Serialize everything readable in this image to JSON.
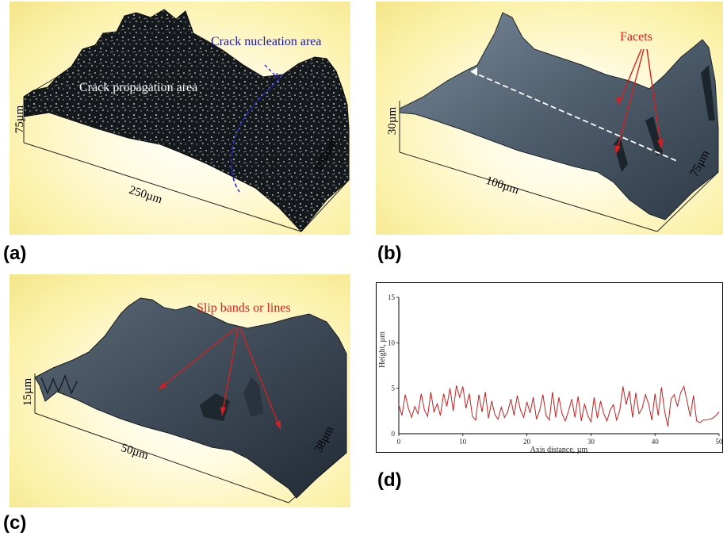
{
  "figure": {
    "panels": [
      {
        "id": "a",
        "label": "(a)",
        "annotations": {
          "propagation": "Crack propagation area",
          "nucleation": "Crack nucleation area"
        },
        "dims": {
          "height": "75µm",
          "length": "250µm",
          "depth": "190µm"
        }
      },
      {
        "id": "b",
        "label": "(b)",
        "annotations": {
          "facets": "Facets"
        },
        "dims": {
          "height": "30µm",
          "length": "100µm",
          "depth": "75µm"
        }
      },
      {
        "id": "c",
        "label": "(c)",
        "annotations": {
          "slip": "Slip bands or lines"
        },
        "dims": {
          "height": "15µm",
          "length": "50µm",
          "depth": "38µm"
        }
      },
      {
        "id": "d",
        "label": "(d)"
      }
    ],
    "colors": {
      "background": "#f7ea9a",
      "annotation_red": "#d42020",
      "annotation_blue": "#1a1aa8",
      "profile_line": "#c62020"
    }
  },
  "chart_data": {
    "type": "line",
    "title": "",
    "xlabel": "Axis distance, µm",
    "ylabel": "Height, µm",
    "xlim": [
      0,
      50
    ],
    "ylim": [
      0,
      15
    ],
    "xticks": [
      0,
      10,
      20,
      30,
      40,
      50
    ],
    "yticks": [
      5,
      10,
      15
    ],
    "grid": false,
    "series": [
      {
        "x": [
          0,
          0.5,
          1,
          1.5,
          2,
          2.5,
          3,
          3.5,
          4,
          4.5,
          5,
          5.5,
          6,
          6.5,
          7,
          7.5,
          8,
          8.5,
          9,
          9.5,
          10,
          10.5,
          11,
          11.5,
          12,
          12.5,
          13,
          13.5,
          14,
          14.5,
          15,
          15.5,
          16,
          16.5,
          17,
          17.5,
          18,
          18.5,
          19,
          19.5,
          20,
          20.5,
          21,
          21.5,
          22,
          22.5,
          23,
          23.5,
          24,
          24.5,
          25,
          25.5,
          26,
          26.5,
          27,
          27.5,
          28,
          28.5,
          29,
          29.5,
          30,
          30.5,
          31,
          31.5,
          32,
          32.5,
          33,
          33.5,
          34,
          34.5,
          35,
          35.5,
          36,
          36.5,
          37,
          37.5,
          38,
          38.5,
          39,
          39.5,
          40,
          40.5,
          41,
          41.5,
          42,
          42.5,
          43,
          43.5,
          44,
          44.5,
          45,
          45.5,
          46,
          46.5,
          47,
          47.5,
          48,
          48.5,
          49,
          49.5,
          50
        ],
        "y": [
          3.2,
          2.0,
          4.3,
          2.8,
          1.8,
          3.0,
          2.2,
          4.4,
          2.6,
          1.9,
          4.6,
          2.4,
          3.3,
          2.0,
          4.4,
          3.0,
          5.0,
          2.5,
          5.3,
          4.0,
          5.2,
          2.8,
          4.4,
          1.9,
          1.5,
          4.3,
          2.4,
          4.6,
          1.7,
          3.6,
          2.1,
          1.6,
          2.9,
          1.8,
          2.4,
          3.8,
          2.0,
          4.2,
          2.6,
          1.8,
          3.5,
          2.3,
          4.0,
          1.6,
          2.6,
          4.3,
          2.0,
          1.5,
          4.6,
          1.8,
          4.0,
          2.2,
          1.4,
          2.5,
          3.8,
          1.8,
          4.1,
          1.4,
          3.3,
          2.0,
          1.3,
          4.0,
          1.7,
          3.6,
          2.2,
          1.4,
          2.6,
          3.2,
          1.5,
          2.6,
          5.2,
          3.2,
          4.7,
          1.8,
          4.5,
          2.2,
          2.8,
          4.3,
          3.3,
          1.5,
          4.4,
          2.0,
          5.1,
          2.5,
          0.8,
          3.8,
          4.3,
          3.0,
          4.5,
          5.2,
          3.6,
          1.9,
          4.2,
          1.4,
          1.2,
          1.5,
          1.5,
          1.6,
          1.7,
          2.0,
          2.4
        ]
      }
    ]
  }
}
